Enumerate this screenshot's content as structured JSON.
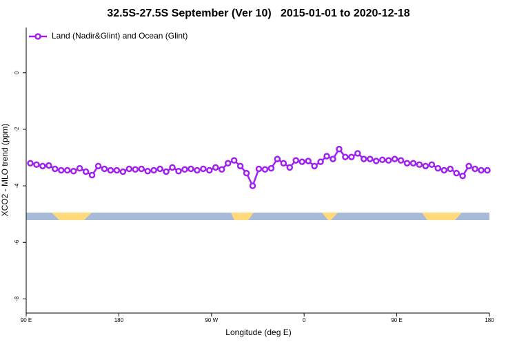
{
  "chart_data": {
    "type": "line",
    "title": "32.5S-27.5S September (Ver 10)   2015-01-01 to 2020-12-18",
    "x_label": "Longitude (deg E)",
    "y_label": "XCO2 - MLO trend (ppm)",
    "xlim": [
      90,
      540
    ],
    "xticks": [
      {
        "value": 90,
        "label": "90 E"
      },
      {
        "value": 180,
        "label": "180"
      },
      {
        "value": 270,
        "label": "90 W"
      },
      {
        "value": 360,
        "label": "0"
      },
      {
        "value": 450,
        "label": "90 E"
      },
      {
        "value": 540,
        "label": "180"
      }
    ],
    "ylim": [
      -8.5,
      1.6
    ],
    "yticks": [
      0,
      -2,
      -4,
      -6,
      -8
    ],
    "grid": false,
    "legend": "top-left",
    "x": [
      94,
      100,
      106,
      112,
      118,
      124,
      130,
      136,
      142,
      148,
      154,
      160,
      166,
      172,
      178,
      184,
      190,
      196,
      202,
      208,
      214,
      220,
      226,
      232,
      238,
      244,
      250,
      256,
      262,
      268,
      274,
      280,
      286,
      292,
      298,
      304,
      310,
      316,
      322,
      328,
      334,
      340,
      346,
      352,
      358,
      364,
      370,
      376,
      382,
      388,
      394,
      400,
      406,
      412,
      418,
      424,
      430,
      436,
      442,
      448,
      454,
      460,
      466,
      472,
      478,
      484,
      490,
      496,
      502,
      508,
      514,
      520,
      526,
      532,
      538
    ],
    "series": [
      {
        "name": "Land (Nadir&Glint) and Ocean (Glint)",
        "color": "#a020f0",
        "values": [
          -3.2,
          -3.25,
          -3.3,
          -3.28,
          -3.4,
          -3.45,
          -3.45,
          -3.48,
          -3.38,
          -3.5,
          -3.62,
          -3.3,
          -3.4,
          -3.45,
          -3.45,
          -3.5,
          -3.4,
          -3.42,
          -3.4,
          -3.48,
          -3.45,
          -3.4,
          -3.5,
          -3.35,
          -3.48,
          -3.42,
          -3.4,
          -3.45,
          -3.4,
          -3.45,
          -3.35,
          -3.42,
          -3.2,
          -3.1,
          -3.3,
          -3.55,
          -4.0,
          -3.4,
          -3.42,
          -3.38,
          -3.05,
          -3.2,
          -3.35,
          -3.1,
          -3.15,
          -3.12,
          -3.3,
          -3.15,
          -2.95,
          -3.05,
          -2.7,
          -2.98,
          -2.98,
          -2.85,
          -3.05,
          -3.05,
          -3.12,
          -3.08,
          -3.1,
          -3.05,
          -3.1,
          -3.2,
          -3.2,
          -3.25,
          -3.3,
          -3.25,
          -3.38,
          -3.45,
          -3.4,
          -3.55,
          -3.65,
          -3.3,
          -3.4,
          -3.45,
          -3.45
        ]
      }
    ]
  }
}
